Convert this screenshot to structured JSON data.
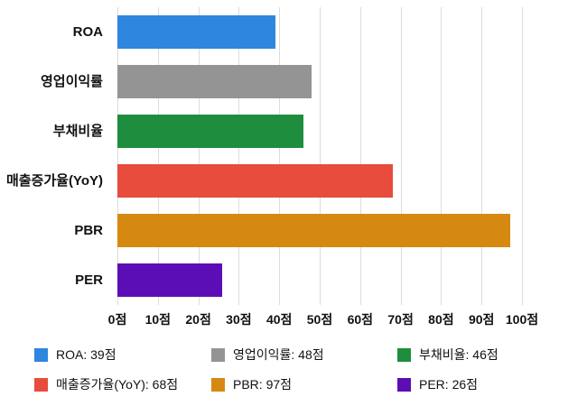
{
  "chart_data": {
    "type": "bar",
    "orientation": "horizontal",
    "title": "",
    "xlabel": "",
    "ylabel": "",
    "categories": [
      "ROA",
      "영업이익률",
      "부채비율",
      "매출증가율(YoY)",
      "PBR",
      "PER"
    ],
    "values": [
      39,
      48,
      46,
      68,
      97,
      26
    ],
    "colors": [
      "#2E86DE",
      "#949494",
      "#1E8E3E",
      "#E74C3C",
      "#D68910",
      "#5B0EB5"
    ],
    "unit": "점",
    "xlim": [
      0,
      100
    ],
    "x_ticks": [
      "0점",
      "10점",
      "20점",
      "30점",
      "40점",
      "50점",
      "60점",
      "70점",
      "80점",
      "90점",
      "100점"
    ],
    "grid": true,
    "legend_position": "bottom",
    "legend": [
      {
        "label": "ROA: 39점",
        "color": "#2E86DE"
      },
      {
        "label": "영업이익률: 48점",
        "color": "#949494"
      },
      {
        "label": "부채비율: 46점",
        "color": "#1E8E3E"
      },
      {
        "label": "매출증가율(YoY): 68점",
        "color": "#E74C3C"
      },
      {
        "label": "PBR: 97점",
        "color": "#D68910"
      },
      {
        "label": "PER: 26점",
        "color": "#5B0EB5"
      }
    ]
  }
}
